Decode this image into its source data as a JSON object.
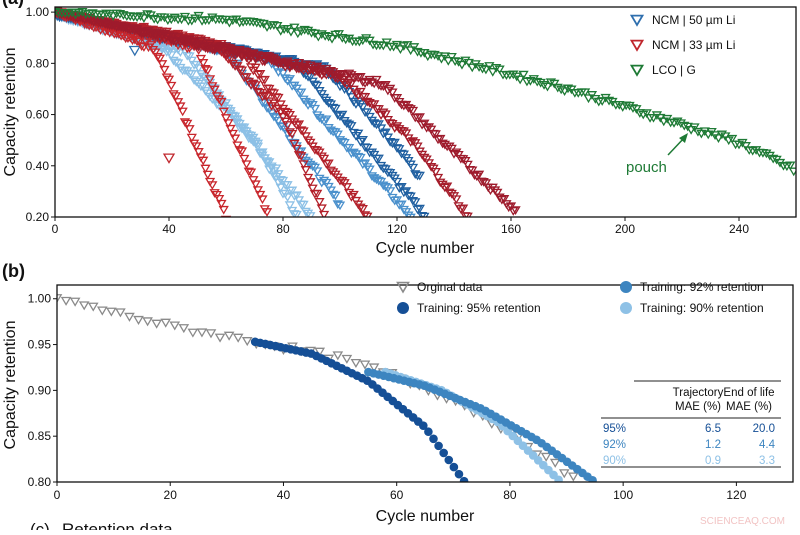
{
  "chart_data": [
    {
      "panel_label": "(a)",
      "type": "scatter",
      "xlabel": "Cycle number",
      "ylabel": "Capacity retention",
      "xlim": [
        0,
        260
      ],
      "ylim": [
        0.2,
        1.02
      ],
      "xticks": [
        "0",
        "40",
        "80",
        "120",
        "160",
        "200",
        "240"
      ],
      "yticks": [
        "0.20",
        "0.40",
        "0.60",
        "0.80",
        "1.00"
      ],
      "grid": false,
      "legend_position": "top-right",
      "marker": "hollow-triangle-down",
      "annotation": "pouch",
      "series": [
        {
          "name": "NCM | 50 µm Li",
          "color": "#2f6fae",
          "cells": [
            {
              "color": "#8cc0e6",
              "knots": [
                [
                  0,
                  0.99
                ],
                [
                  38,
                  0.86
                ],
                [
                  70,
                  0.5
                ],
                [
                  85,
                  0.2
                ]
              ]
            },
            {
              "color": "#8cc0e6",
              "knots": [
                [
                  0,
                  0.99
                ],
                [
                  45,
                  0.85
                ],
                [
                  90,
                  0.2
                ]
              ]
            },
            {
              "color": "#4a90cc",
              "knots": [
                [
                  0,
                  0.99
                ],
                [
                  60,
                  0.85
                ],
                [
                  100,
                  0.25
                ]
              ]
            },
            {
              "color": "#4a90cc",
              "knots": [
                [
                  0,
                  0.99
                ],
                [
                  75,
                  0.82
                ],
                [
                  125,
                  0.2
                ]
              ]
            },
            {
              "color": "#1f5fa0",
              "knots": [
                [
                  0,
                  0.99
                ],
                [
                  85,
                  0.8
                ],
                [
                  130,
                  0.2
                ]
              ]
            },
            {
              "color": "#1f5fa0",
              "knots": [
                [
                  0,
                  0.99
                ],
                [
                  95,
                  0.78
                ],
                [
                  118,
                  0.5
                ],
                [
                  128,
                  0.35
                ]
              ]
            }
          ],
          "outliers": [
            [
              28,
              0.85
            ]
          ]
        },
        {
          "name": "NCM | 33 µm Li",
          "color": "#c0272d",
          "cells": [
            {
              "color": "#c8262c",
              "knots": [
                [
                  0,
                  1.0
                ],
                [
                  35,
                  0.86
                ],
                [
                  60,
                  0.2
                ]
              ]
            },
            {
              "color": "#c8262c",
              "knots": [
                [
                  0,
                  1.0
                ],
                [
                  50,
                  0.86
                ],
                [
                  75,
                  0.2
                ]
              ]
            },
            {
              "color": "#b3202a",
              "knots": [
                [
                  0,
                  1.0
                ],
                [
                  55,
                  0.88
                ],
                [
                  80,
                  0.6
                ],
                [
                  95,
                  0.2
                ]
              ]
            },
            {
              "color": "#b3202a",
              "knots": [
                [
                  0,
                  1.0
                ],
                [
                  65,
                  0.85
                ],
                [
                  110,
                  0.2
                ]
              ]
            },
            {
              "color": "#a51c2a",
              "knots": [
                [
                  0,
                  1.0
                ],
                [
                  100,
                  0.75
                ],
                [
                  125,
                  0.5
                ],
                [
                  145,
                  0.2
                ]
              ]
            },
            {
              "color": "#9e1b2c",
              "knots": [
                [
                  0,
                  1.0
                ],
                [
                  115,
                  0.72
                ],
                [
                  140,
                  0.45
                ],
                [
                  162,
                  0.22
                ]
              ]
            }
          ],
          "outliers": [
            [
              40,
              0.43
            ]
          ]
        },
        {
          "name": "LCO | G",
          "color": "#1e7a35",
          "cells": [
            {
              "color": "#1e7a35",
              "knots": [
                [
                  0,
                  1.0
                ],
                [
                  60,
                  0.97
                ],
                [
                  120,
                  0.87
                ],
                [
                  180,
                  0.7
                ],
                [
                  240,
                  0.49
                ],
                [
                  260,
                  0.38
                ]
              ]
            }
          ],
          "outliers": []
        }
      ]
    },
    {
      "panel_label": "(b)",
      "type": "scatter",
      "xlabel": "Cycle number",
      "ylabel": "Capacity retention",
      "xlim": [
        0,
        130
      ],
      "ylim": [
        0.8,
        1.015
      ],
      "xticks": [
        "0",
        "20",
        "40",
        "60",
        "80",
        "100",
        "120"
      ],
      "yticks": [
        "0.80",
        "0.85",
        "0.90",
        "0.95",
        "1.00"
      ],
      "grid": false,
      "legend_position": "top",
      "series": [
        {
          "name": "Orginal data",
          "color": "#8a8a8a",
          "marker": "hollow-triangle-down",
          "knots": [
            [
              0,
              1.0
            ],
            [
              20,
              0.97
            ],
            [
              35,
              0.953
            ],
            [
              50,
              0.935
            ],
            [
              60,
              0.915
            ],
            [
              70,
              0.89
            ],
            [
              80,
              0.855
            ],
            [
              92,
              0.8
            ]
          ]
        },
        {
          "name": "Training: 95% retention",
          "color": "#154f96",
          "marker": "filled-circle",
          "knots": [
            [
              35,
              0.953
            ],
            [
              45,
              0.94
            ],
            [
              55,
              0.91
            ],
            [
              65,
              0.86
            ],
            [
              72,
              0.8
            ]
          ]
        },
        {
          "name": "Training: 92% retention",
          "color": "#3d85c0",
          "marker": "filled-circle",
          "knots": [
            [
              55,
              0.92
            ],
            [
              65,
              0.905
            ],
            [
              75,
              0.88
            ],
            [
              85,
              0.845
            ],
            [
              95,
              0.8
            ]
          ]
        },
        {
          "name": "Training: 90% retention",
          "color": "#8ec1e6",
          "marker": "filled-circle",
          "knots": [
            [
              58,
              0.92
            ],
            [
              68,
              0.9
            ],
            [
              78,
              0.865
            ],
            [
              89,
              0.8
            ]
          ]
        }
      ],
      "table": {
        "headers": [
          [
            "Trajectory",
            "MAE (%)"
          ],
          [
            "End of life",
            "MAE (%)"
          ]
        ],
        "rows": [
          {
            "label": "95%",
            "trajectory": "6.5",
            "eol": "20.0",
            "color": "#154f96"
          },
          {
            "label": "92%",
            "trajectory": "1.2",
            "eol": "4.4",
            "color": "#3d85c0"
          },
          {
            "label": "90%",
            "trajectory": "0.9",
            "eol": "3.3",
            "color": "#8ec1e6"
          }
        ]
      }
    }
  ],
  "next_panel": {
    "label": "(c)",
    "title": "Retention data"
  },
  "watermark": "SCIENCEAQ.COM"
}
